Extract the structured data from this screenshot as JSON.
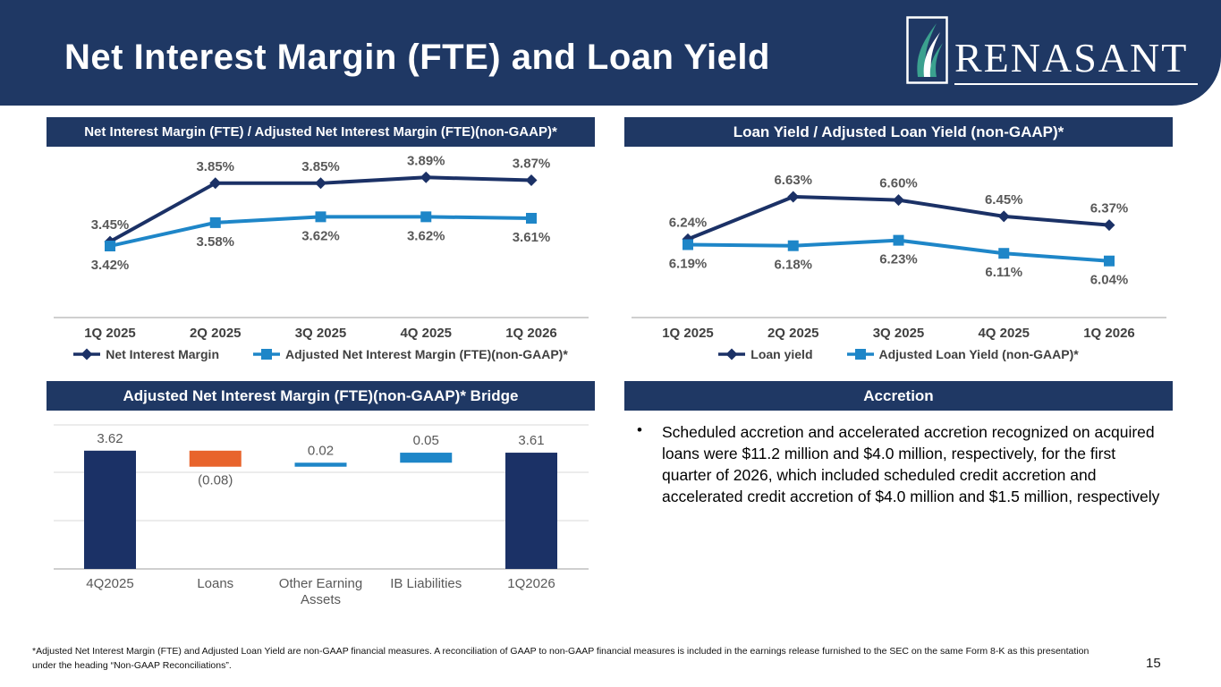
{
  "slide": {
    "title": "Net Interest Margin (FTE) and Loan Yield",
    "page_number": "15",
    "footnote": "*Adjusted Net Interest Margin (FTE) and Adjusted Loan Yield are non-GAAP financial measures. A reconciliation of GAAP to non-GAAP financial measures is included in the earnings release furnished to the SEC on the same Form 8-K as this presentation under the heading “Non-GAAP Reconciliations”."
  },
  "logo": {
    "text": "RENASANT"
  },
  "colors": {
    "navy": "#1F3864",
    "series_navy": "#1B3166",
    "blue": "#1E86C8",
    "orange": "#E8642C",
    "label_gray": "#595959",
    "cat_dark": "#404040",
    "grid_gray": "#D9D9D9",
    "axis_gray": "#BFBFBF",
    "logo_teal": "#3BA18F"
  },
  "accretion": {
    "title": "Accretion",
    "bullet": "Scheduled accretion and accelerated accretion recognized on acquired loans were $11.2 million and $4.0 million, respectively, for the first quarter of 2026, which included scheduled credit accretion and accelerated credit accretion of $4.0 million and $1.5 million, respectively"
  },
  "chart_data": [
    {
      "id": "nim",
      "type": "line",
      "title": "Net Interest Margin (FTE) / Adjusted Net Interest Margin (FTE)(non-GAAP)*",
      "categories": [
        "1Q 2025",
        "2Q 2025",
        "3Q 2025",
        "4Q 2025",
        "1Q 2026"
      ],
      "series": [
        {
          "name": "Net Interest Margin",
          "marker": "diamond",
          "color": "#1B3166",
          "values": [
            3.45,
            3.85,
            3.85,
            3.89,
            3.87
          ],
          "labels": [
            "3.45%",
            "3.85%",
            "3.85%",
            "3.89%",
            "3.87%"
          ],
          "label_position": "above"
        },
        {
          "name": "Adjusted Net Interest Margin (FTE)(non-GAAP)*",
          "marker": "square",
          "color": "#1E86C8",
          "values": [
            3.42,
            3.58,
            3.62,
            3.62,
            3.61
          ],
          "labels": [
            "3.42%",
            "3.58%",
            "3.62%",
            "3.62%",
            "3.61%"
          ],
          "label_position": "below"
        }
      ],
      "ylim": [
        2.93,
        4.1
      ],
      "grid": false,
      "legend_position": "bottom",
      "xlabel": "",
      "ylabel": ""
    },
    {
      "id": "loan_yield",
      "type": "line",
      "title": "Loan Yield / Adjusted Loan Yield (non-GAAP)*",
      "categories": [
        "1Q 2025",
        "2Q 2025",
        "3Q 2025",
        "4Q 2025",
        "1Q 2026"
      ],
      "series": [
        {
          "name": "Loan yield",
          "marker": "diamond",
          "color": "#1B3166",
          "values": [
            6.24,
            6.63,
            6.6,
            6.45,
            6.37
          ],
          "labels": [
            "6.24%",
            "6.63%",
            "6.60%",
            "6.45%",
            "6.37%"
          ],
          "label_position": "above"
        },
        {
          "name": "Adjusted Loan Yield (non-GAAP)*",
          "marker": "square",
          "color": "#1E86C8",
          "values": [
            6.19,
            6.18,
            6.23,
            6.11,
            6.04
          ],
          "labels": [
            "6.19%",
            "6.18%",
            "6.23%",
            "6.11%",
            "6.04%"
          ],
          "label_position": "below"
        }
      ],
      "ylim": [
        5.52,
        7.09
      ],
      "grid": false,
      "legend_position": "bottom",
      "xlabel": "",
      "ylabel": ""
    },
    {
      "id": "bridge",
      "type": "waterfall",
      "title": "Adjusted Net Interest Margin (FTE)(non-GAAP)* Bridge",
      "categories": [
        [
          "4Q2025"
        ],
        [
          "Loans"
        ],
        [
          "Other Earning",
          "Assets"
        ],
        [
          "IB Liabilities"
        ],
        [
          "1Q2026"
        ]
      ],
      "steps": [
        {
          "kind": "total",
          "value": 3.62,
          "label": "3.62"
        },
        {
          "kind": "delta",
          "value": -0.08,
          "label": "(0.08)"
        },
        {
          "kind": "delta",
          "value": 0.02,
          "label": "0.02"
        },
        {
          "kind": "delta",
          "value": 0.05,
          "label": "0.05"
        },
        {
          "kind": "total",
          "value": 3.61,
          "label": "3.61"
        }
      ],
      "ylim": [
        3.03,
        3.82
      ],
      "grid": true,
      "xlabel": "",
      "ylabel": ""
    }
  ]
}
